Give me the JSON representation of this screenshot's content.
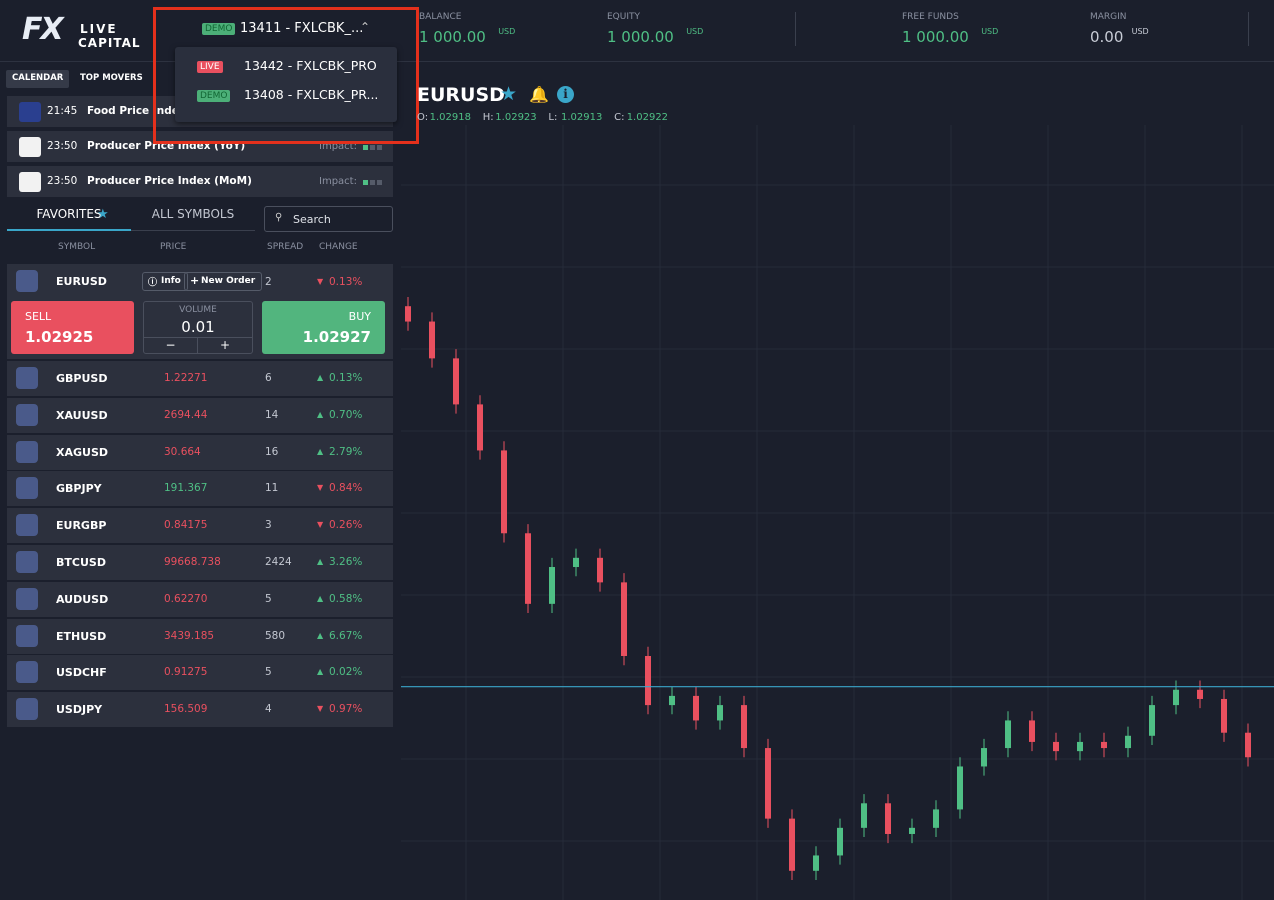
{
  "header": {
    "logo": {
      "mark": "FX",
      "line1": "LIVE",
      "line2": "CAPITAL"
    },
    "account": {
      "badge": "DEMO",
      "name": "13411 - FXLCBK_..."
    },
    "account_menu": [
      {
        "badge": "LIVE",
        "name": "13442 - FXLCBK_PRO"
      },
      {
        "badge": "DEMO",
        "name": "13408 - FXLCBK_PR..."
      }
    ],
    "stats": [
      {
        "label": "BALANCE",
        "value": "1 000.00",
        "unit": "USD"
      },
      {
        "label": "EQUITY",
        "value": "1 000.00",
        "unit": "USD"
      },
      {
        "label": "FREE FUNDS",
        "value": "1 000.00",
        "unit": "USD"
      },
      {
        "label": "MARGIN",
        "value": "0.00",
        "unit": "USD"
      }
    ]
  },
  "calendar": {
    "tabs": [
      "CALENDAR",
      "TOP MOVERS"
    ],
    "events": [
      {
        "time": "21:45",
        "title": "Food Price Index ("
      },
      {
        "time": "23:50",
        "title": "Producer Price Index (YoY)",
        "impact": "Impact:"
      },
      {
        "time": "23:50",
        "title": "Producer Price Index (MoM)",
        "impact": "Impact:"
      }
    ]
  },
  "symbols": {
    "tabs": [
      "FAVORITES",
      "ALL SYMBOLS"
    ],
    "search": "Search",
    "columns": [
      "SYMBOL",
      "PRICE",
      "SPREAD",
      "CHANGE"
    ],
    "selected": {
      "symbol": "EURUSD",
      "info": "Info",
      "new_order": "New Order",
      "spread": 2,
      "change": "0.13%",
      "direction": "down",
      "sell_label": "SELL",
      "sell": "1.02925",
      "volume_label": "VOLUME",
      "volume": "0.01",
      "minus": "−",
      "plus": "+",
      "buy_label": "BUY",
      "buy": "1.02927"
    },
    "rows": [
      {
        "symbol": "GBPUSD",
        "price": "1.22271",
        "tick": "down",
        "spread": 6,
        "change": "0.13%",
        "direction": "up"
      },
      {
        "symbol": "XAUUSD",
        "price": "2694.44",
        "tick": "down",
        "spread": 14,
        "change": "0.70%",
        "direction": "up"
      },
      {
        "symbol": "XAGUSD",
        "price": "30.664",
        "tick": "down",
        "spread": 16,
        "change": "2.79%",
        "direction": "up"
      },
      {
        "symbol": "GBPJPY",
        "price": "191.367",
        "tick": "up",
        "spread": 11,
        "change": "0.84%",
        "direction": "down"
      },
      {
        "symbol": "EURGBP",
        "price": "0.84175",
        "tick": "down",
        "spread": 3,
        "change": "0.26%",
        "direction": "down"
      },
      {
        "symbol": "BTCUSD",
        "price": "99668.738",
        "tick": "down",
        "spread": 2424,
        "change": "3.26%",
        "direction": "up"
      },
      {
        "symbol": "AUDUSD",
        "price": "0.62270",
        "tick": "down",
        "spread": 5,
        "change": "0.58%",
        "direction": "up"
      },
      {
        "symbol": "ETHUSD",
        "price": "3439.185",
        "tick": "down",
        "spread": 580,
        "change": "6.67%",
        "direction": "up"
      },
      {
        "symbol": "USDCHF",
        "price": "0.91275",
        "tick": "down",
        "spread": 5,
        "change": "0.02%",
        "direction": "up"
      },
      {
        "symbol": "USDJPY",
        "price": "156.509",
        "tick": "down",
        "spread": 4,
        "change": "0.97%",
        "direction": "down"
      }
    ]
  },
  "chart": {
    "symbol": "EURUSD",
    "ohlc": [
      {
        "label": "O:",
        "value": "1.02918"
      },
      {
        "label": "H:",
        "value": "1.02923"
      },
      {
        "label": "L:",
        "value": "1.02913"
      },
      {
        "label": "C:",
        "value": "1.02922"
      }
    ],
    "price_line": 1.02925,
    "candles": [
      [
        1.03049,
        1.03052,
        1.03041,
        1.03044
      ],
      [
        1.03044,
        1.03047,
        1.03029,
        1.03032
      ],
      [
        1.03032,
        1.03035,
        1.03014,
        1.03017
      ],
      [
        1.03017,
        1.0302,
        1.02999,
        1.03002
      ],
      [
        1.03002,
        1.03005,
        1.02972,
        1.02975
      ],
      [
        1.02975,
        1.02978,
        1.02949,
        1.02952
      ],
      [
        1.02952,
        1.02967,
        1.02949,
        1.02964
      ],
      [
        1.02964,
        1.0297,
        1.02961,
        1.02967
      ],
      [
        1.02967,
        1.0297,
        1.02956,
        1.02959
      ],
      [
        1.02959,
        1.02962,
        1.02932,
        1.02935
      ],
      [
        1.02935,
        1.02938,
        1.02916,
        1.02919
      ],
      [
        1.02919,
        1.02925,
        1.02916,
        1.02922
      ],
      [
        1.02922,
        1.02925,
        1.02911,
        1.02914
      ],
      [
        1.02914,
        1.02922,
        1.02911,
        1.02919
      ],
      [
        1.02919,
        1.02922,
        1.02902,
        1.02905
      ],
      [
        1.02905,
        1.02908,
        1.02879,
        1.02882
      ],
      [
        1.02882,
        1.02885,
        1.02862,
        1.02865
      ],
      [
        1.02865,
        1.02873,
        1.02862,
        1.0287
      ],
      [
        1.0287,
        1.02882,
        1.02867,
        1.02879
      ],
      [
        1.02879,
        1.0289,
        1.02876,
        1.02887
      ],
      [
        1.02887,
        1.0289,
        1.02874,
        1.02877
      ],
      [
        1.02877,
        1.02882,
        1.02874,
        1.02879
      ],
      [
        1.02879,
        1.02888,
        1.02876,
        1.02885
      ],
      [
        1.02885,
        1.02902,
        1.02882,
        1.02899
      ],
      [
        1.02899,
        1.02908,
        1.02896,
        1.02905
      ],
      [
        1.02905,
        1.02917,
        1.02902,
        1.02914
      ],
      [
        1.02914,
        1.02917,
        1.02904,
        1.02907
      ],
      [
        1.02907,
        1.0291,
        1.02901,
        1.02904
      ],
      [
        1.02904,
        1.0291,
        1.02901,
        1.02907
      ],
      [
        1.02907,
        1.0291,
        1.02902,
        1.02905
      ],
      [
        1.02905,
        1.02912,
        1.02902,
        1.02909
      ],
      [
        1.02909,
        1.02922,
        1.02906,
        1.02919
      ],
      [
        1.02919,
        1.02927,
        1.02916,
        1.02924
      ],
      [
        1.02924,
        1.02927,
        1.02918,
        1.02921
      ],
      [
        1.02921,
        1.02924,
        1.02907,
        1.0291
      ],
      [
        1.0291,
        1.02913,
        1.02899,
        1.02902
      ]
    ]
  }
}
